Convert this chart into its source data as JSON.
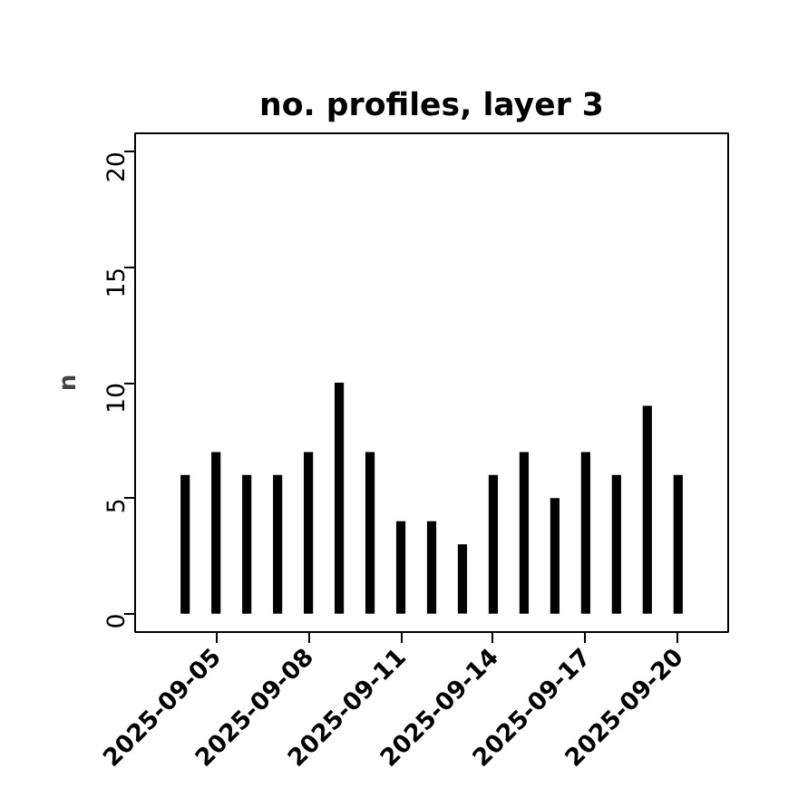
{
  "chart_data": {
    "type": "bar",
    "title": "no. profiles, layer 3",
    "ylabel": "n",
    "x": [
      "2025-09-04",
      "2025-09-05",
      "2025-09-06",
      "2025-09-07",
      "2025-09-08",
      "2025-09-09",
      "2025-09-10",
      "2025-09-11",
      "2025-09-12",
      "2025-09-13",
      "2025-09-14",
      "2025-09-15",
      "2025-09-16",
      "2025-09-17",
      "2025-09-18",
      "2025-09-19",
      "2025-09-20"
    ],
    "values": [
      6,
      7,
      6,
      6,
      7,
      10,
      7,
      4,
      4,
      3,
      6,
      7,
      5,
      7,
      6,
      9,
      6
    ],
    "color": "#000000",
    "xlim": [
      "2025-09-02T09:00",
      "2025-09-21T15:00"
    ],
    "xticks": [
      {
        "value": "2025-09-05",
        "label": "2025-09-05"
      },
      {
        "value": "2025-09-08",
        "label": "2025-09-08"
      },
      {
        "value": "2025-09-11",
        "label": "2025-09-11"
      },
      {
        "value": "2025-09-14",
        "label": "2025-09-14"
      },
      {
        "value": "2025-09-17",
        "label": "2025-09-17"
      },
      {
        "value": "2025-09-20",
        "label": "2025-09-20"
      }
    ],
    "ylim": [
      -0.8,
      20.8
    ],
    "yticks": [
      0,
      5,
      10,
      15,
      20
    ],
    "grid": false
  }
}
